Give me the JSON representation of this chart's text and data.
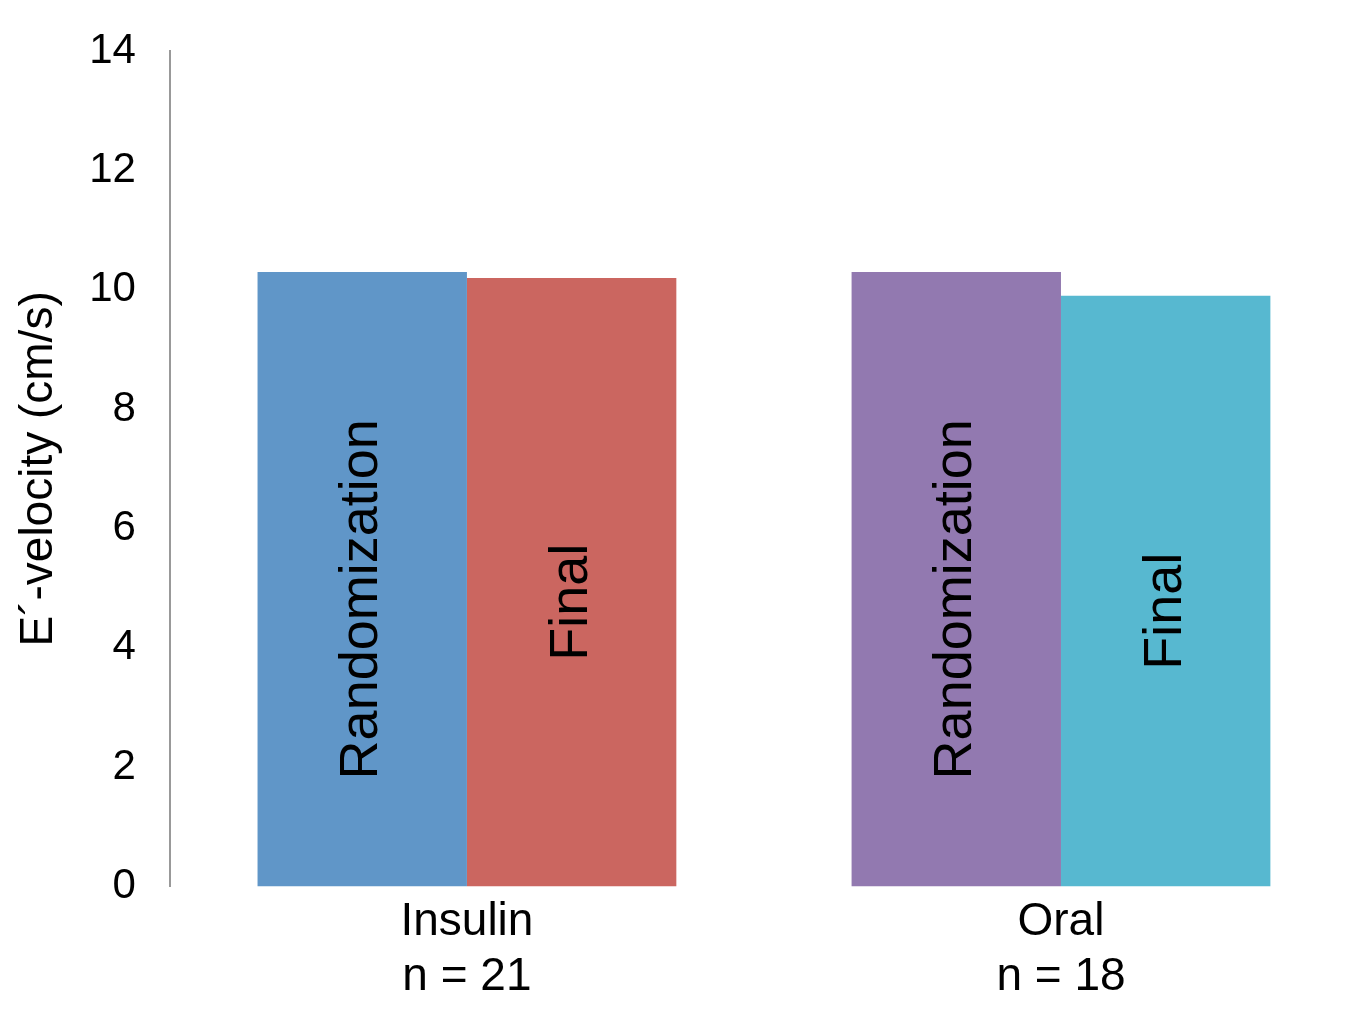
{
  "chart_data": {
    "type": "bar",
    "ylabel": "E´-velocity (cm/s)",
    "categories": [
      "Insulin\nn = 21",
      "Oral\nn = 18"
    ],
    "series": [
      {
        "name": "Randomization",
        "colors": [
          "#6096c8",
          "#9279b0"
        ],
        "values": [
          10.3,
          10.3
        ]
      },
      {
        "name": "Final",
        "colors": [
          "#cb6660",
          "#57b8d0"
        ],
        "values": [
          10.2,
          9.9
        ]
      }
    ],
    "ylim": [
      0,
      14
    ],
    "yticks": [
      0,
      2,
      4,
      6,
      8,
      10,
      12,
      14
    ],
    "grid": false,
    "legend": false
  }
}
